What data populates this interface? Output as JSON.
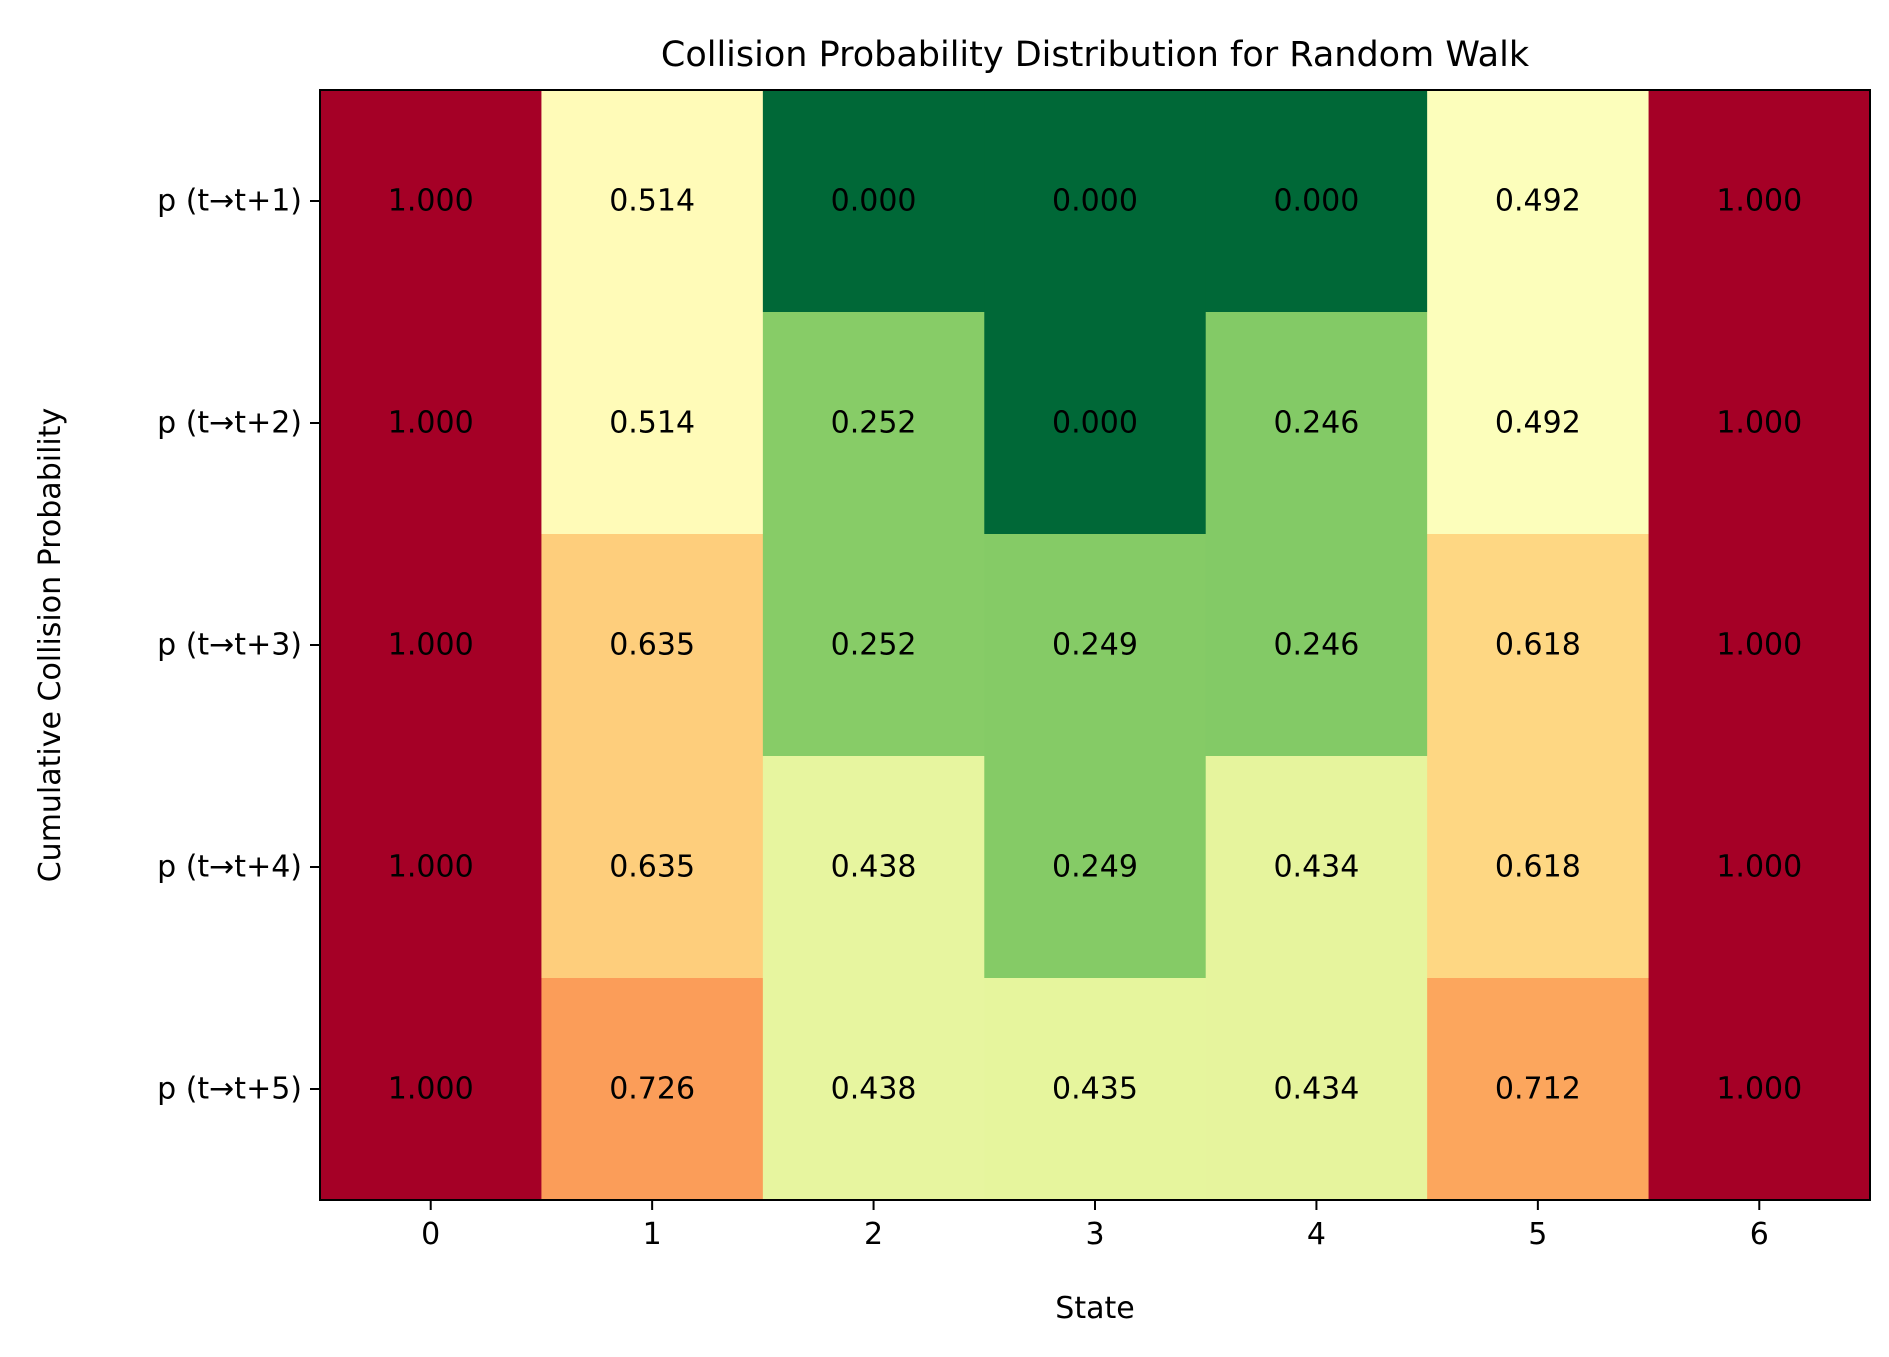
{
  "chart_data": {
    "type": "heatmap",
    "title": "Collision Probability Distribution for Random Walk",
    "xlabel": "State",
    "ylabel": "Cumulative Collision Probability",
    "x_categories": [
      "0",
      "1",
      "2",
      "3",
      "4",
      "5",
      "6"
    ],
    "y_categories": [
      "p (t→t+1)",
      "p (t→t+2)",
      "p (t→t+3)",
      "p (t→t+4)",
      "p (t→t+5)"
    ],
    "values": [
      [
        1.0,
        0.514,
        0.0,
        0.0,
        0.0,
        0.492,
        1.0
      ],
      [
        1.0,
        0.514,
        0.252,
        0.0,
        0.246,
        0.492,
        1.0
      ],
      [
        1.0,
        0.635,
        0.252,
        0.249,
        0.246,
        0.618,
        1.0
      ],
      [
        1.0,
        0.635,
        0.438,
        0.249,
        0.434,
        0.618,
        1.0
      ],
      [
        1.0,
        0.726,
        0.438,
        0.435,
        0.434,
        0.712,
        1.0
      ]
    ],
    "labels": [
      [
        "1.000",
        "0.514",
        "0.000",
        "0.000",
        "0.000",
        "0.492",
        "1.000"
      ],
      [
        "1.000",
        "0.514",
        "0.252",
        "0.000",
        "0.246",
        "0.492",
        "1.000"
      ],
      [
        "1.000",
        "0.635",
        "0.252",
        "0.249",
        "0.246",
        "0.618",
        "1.000"
      ],
      [
        "1.000",
        "0.635",
        "0.438",
        "0.249",
        "0.434",
        "0.618",
        "1.000"
      ],
      [
        "1.000",
        "0.726",
        "0.438",
        "0.435",
        "0.434",
        "0.712",
        "1.000"
      ]
    ],
    "vmin": 0,
    "vmax": 1,
    "colormap": "RdYlGn_r",
    "colormap_stops": [
      {
        "v": 0.0,
        "color": "#006837"
      },
      {
        "v": 0.1,
        "color": "#1a9850"
      },
      {
        "v": 0.2,
        "color": "#66bd63"
      },
      {
        "v": 0.3,
        "color": "#a6d96a"
      },
      {
        "v": 0.4,
        "color": "#d9ef8b"
      },
      {
        "v": 0.5,
        "color": "#ffffbf"
      },
      {
        "v": 0.6,
        "color": "#fee08b"
      },
      {
        "v": 0.7,
        "color": "#fdae61"
      },
      {
        "v": 0.8,
        "color": "#f46d43"
      },
      {
        "v": 0.9,
        "color": "#d73027"
      },
      {
        "v": 1.0,
        "color": "#a50026"
      }
    ],
    "grid": false
  }
}
